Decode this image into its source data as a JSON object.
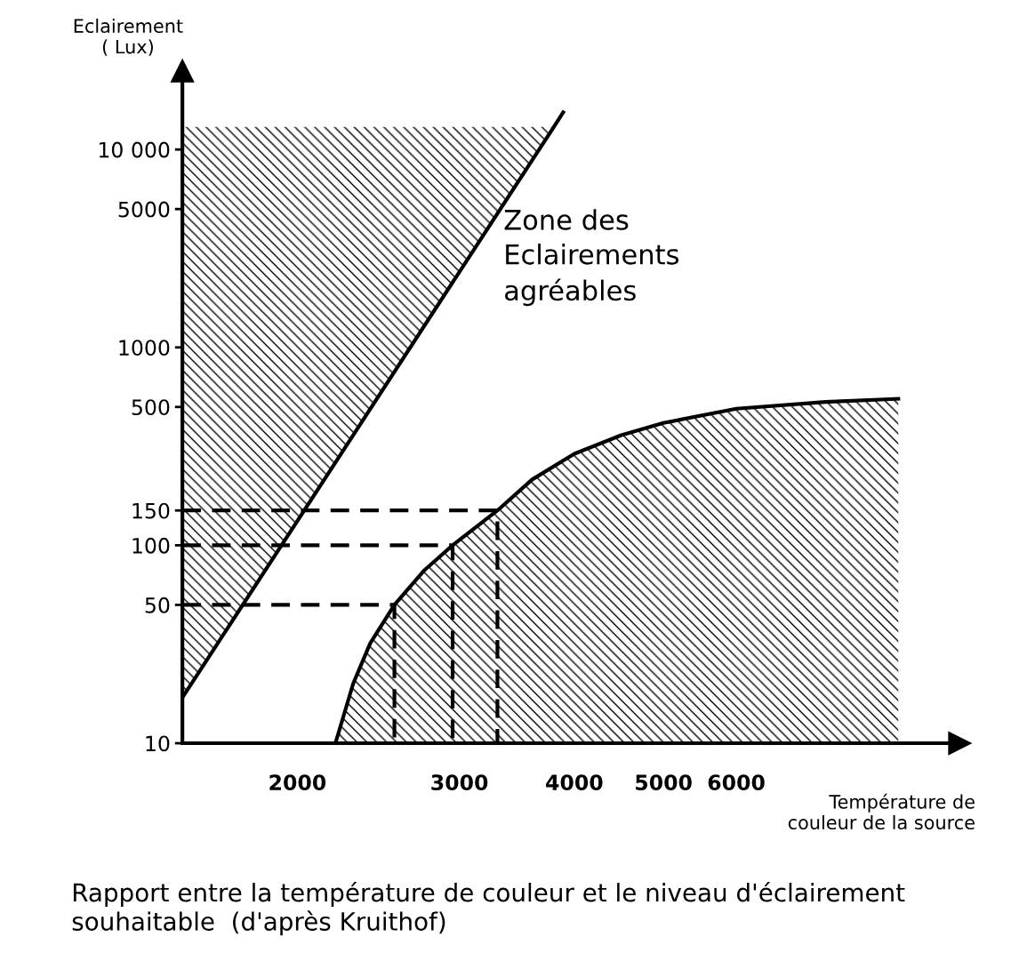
{
  "chart_data": {
    "type": "line",
    "title": "Rapport entre la température de couleur et le niveau d'éclairement souhaitable  (d'après Kruithof)",
    "xlabel": "Température de\ncouleur de la source",
    "ylabel": "Eclairement\n( Lux)",
    "log": "xy",
    "xlim": [
      1500,
      10500
    ],
    "ylim": [
      10,
      25000
    ],
    "xticks": [
      2000,
      3000,
      4000,
      5000,
      6000
    ],
    "yticks": [
      10,
      50,
      100,
      150,
      500,
      1000,
      5000,
      {
        "value": 10000,
        "label": "10 000"
      }
    ],
    "grid": false,
    "legend": false,
    "series": [
      {
        "color": "#000000",
        "x": [
          1500,
          3800,
          3900
        ],
        "values": [
          17,
          13000,
          15700
        ],
        "lower": [
          17,
          13000,
          null
        ],
        "upper": [
          13000,
          13000,
          null
        ]
      },
      {
        "type": "area",
        "color": "#000000",
        "x": [
          2200,
          2300,
          2400,
          2550,
          2750,
          2950,
          3300,
          3600,
          4000,
          4500,
          5000,
          6000,
          7500,
          9000
        ],
        "values": [
          10,
          20,
          32,
          50,
          75,
          100,
          150,
          215,
          290,
          360,
          415,
          490,
          530,
          550
        ]
      },
      {
        "color": "#000000",
        "line_style": "dashed",
        "x": [
          1500,
          3300,
          3300
        ],
        "values": [
          150,
          150,
          10
        ]
      },
      {
        "color": "#000000",
        "line_style": "dashed",
        "x": [
          1500,
          2950,
          2950
        ],
        "values": [
          100,
          100,
          10
        ]
      },
      {
        "color": "#000000",
        "line_style": "dashed",
        "x": [
          1500,
          2550,
          2550
        ],
        "values": [
          50,
          50,
          10
        ]
      }
    ],
    "annotations": [
      {
        "text": "Zone des\nEclairements\nagréables",
        "x": 3350,
        "y": 5000
      }
    ]
  }
}
